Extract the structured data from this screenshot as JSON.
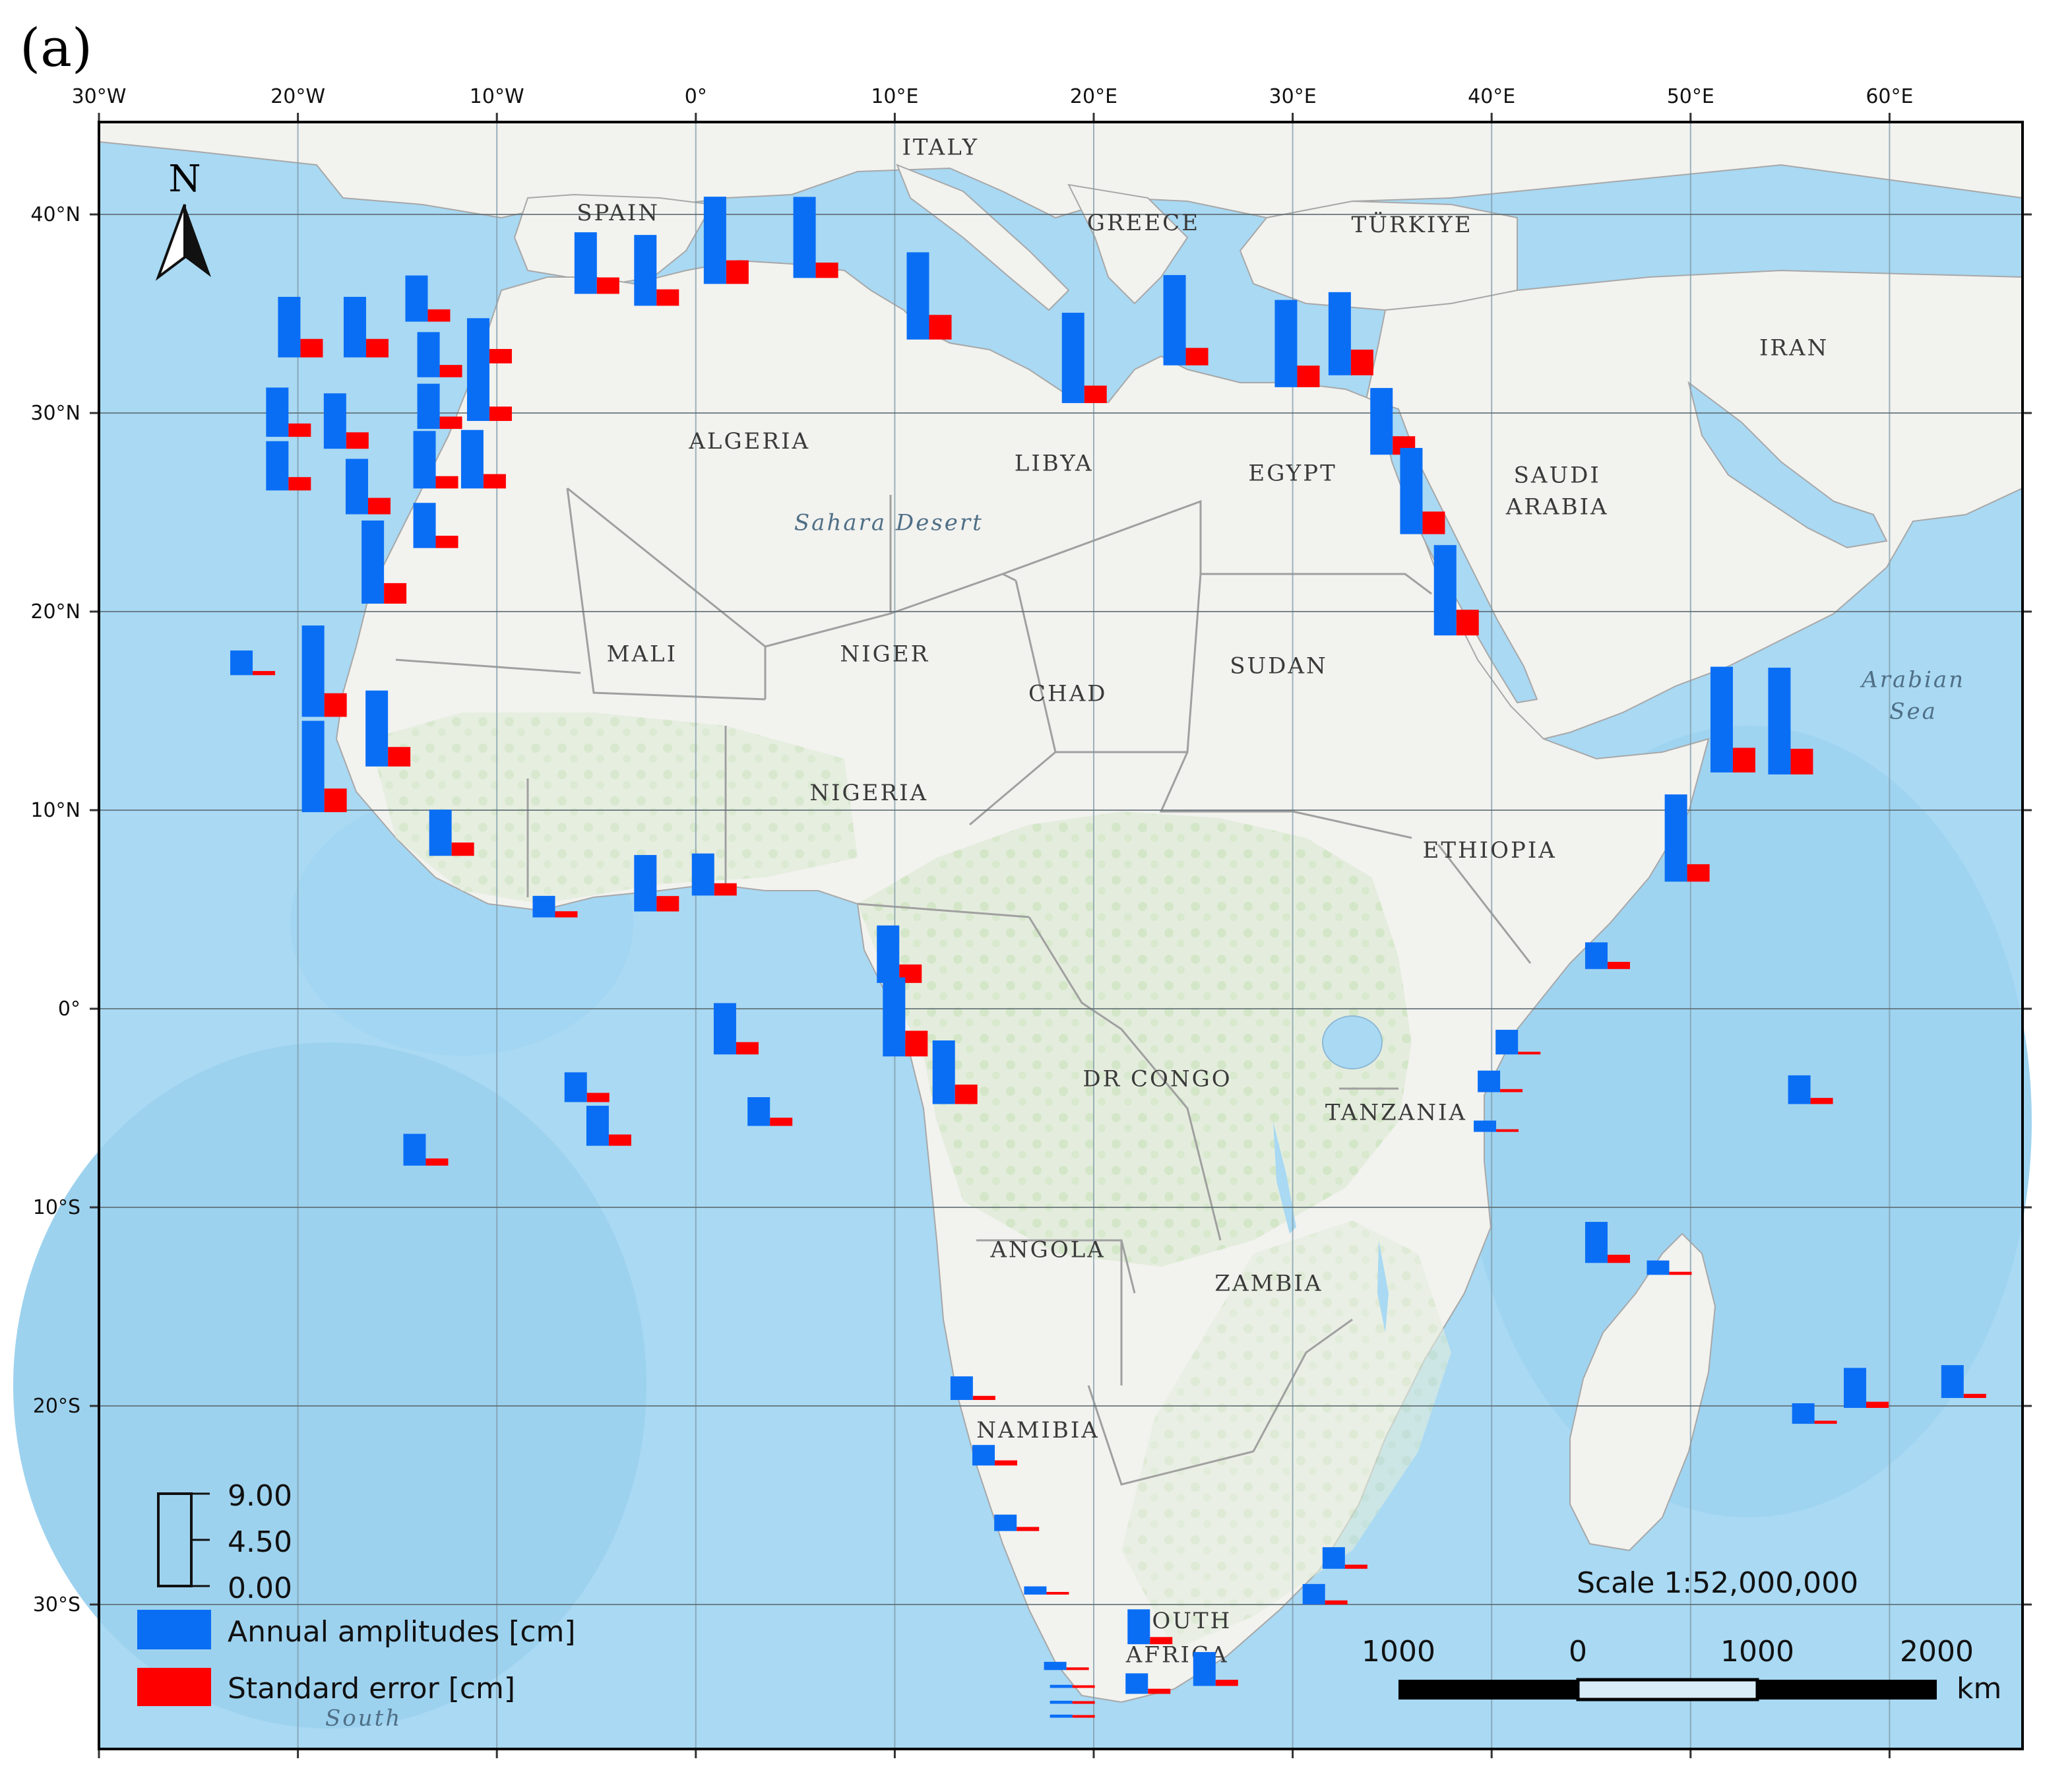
{
  "panel_label": "(a)",
  "grid": {
    "lon_labels": [
      "30°W",
      "20°W",
      "10°W",
      "0°",
      "10°E",
      "20°E",
      "30°E",
      "40°E",
      "50°E",
      "60°E"
    ],
    "lon_values": [
      -30,
      -20,
      -10,
      0,
      10,
      20,
      30,
      40,
      50,
      60
    ],
    "lat_labels": [
      "40°N",
      "30°N",
      "20°N",
      "10°N",
      "0°",
      "10°S",
      "20°S",
      "30°S"
    ],
    "lat_values": [
      40,
      30,
      20,
      10,
      0,
      -10,
      -20,
      -30
    ]
  },
  "north_arrow": {
    "label": "N"
  },
  "countries": [
    {
      "name": "ITALY",
      "lon": 12.3,
      "lat": 43
    },
    {
      "name": "SPAIN",
      "lon": -3.9,
      "lat": 39.7
    },
    {
      "name": "GREECE",
      "lon": 22.5,
      "lat": 39.2
    },
    {
      "name": "TÜRKIYE",
      "lon": 36,
      "lat": 39.1
    },
    {
      "name": "IRAN",
      "lon": 55.2,
      "lat": 32.9
    },
    {
      "name": "ALGERIA",
      "lon": 2.7,
      "lat": 28.2
    },
    {
      "name": "LIBYA",
      "lon": 18,
      "lat": 27.1
    },
    {
      "name": "EGYPT",
      "lon": 30,
      "lat": 26.6
    },
    {
      "name": "SAUDI",
      "lon": 43.3,
      "lat": 26.5
    },
    {
      "name": "ARABIA",
      "lon": 43.3,
      "lat": 24.9
    },
    {
      "name": "MALI",
      "lon": -2.7,
      "lat": 17.5
    },
    {
      "name": "NIGER",
      "lon": 9.5,
      "lat": 17.5
    },
    {
      "name": "CHAD",
      "lon": 18.7,
      "lat": 15.5
    },
    {
      "name": "SUDAN",
      "lon": 29.3,
      "lat": 16.9
    },
    {
      "name": "NIGERIA",
      "lon": 8.7,
      "lat": 10.5
    },
    {
      "name": "ETHIOPIA",
      "lon": 39.9,
      "lat": 7.6
    },
    {
      "name": "DR CONGO",
      "lon": 23.2,
      "lat": -3.9
    },
    {
      "name": "TANZANIA",
      "lon": 35.2,
      "lat": -5.6
    },
    {
      "name": "ANGOLA",
      "lon": 17.7,
      "lat": -12.5
    },
    {
      "name": "ZAMBIA",
      "lon": 28.8,
      "lat": -14.2
    },
    {
      "name": "NAMIBIA",
      "lon": 17.2,
      "lat": -21.6
    },
    {
      "name": "SOUTH",
      "lon": 24.5,
      "lat": -31.2
    },
    {
      "name": "AFRICA",
      "lon": 24.2,
      "lat": -32.9
    }
  ],
  "seas": [
    {
      "name": "Sahara Desert",
      "lon": 9.7,
      "lat": 24.1
    },
    {
      "name": "Arabian",
      "lon": 61.2,
      "lat": 16.2
    },
    {
      "name": "Sea",
      "lon": 61.2,
      "lat": 14.6
    },
    {
      "name": "South",
      "lon": -16.7,
      "lat": -36.1
    }
  ],
  "legend": {
    "scale_ticks": [
      "9.00",
      "4.50",
      "0.00"
    ],
    "scale_values": [
      9,
      4.5,
      0
    ],
    "series": [
      {
        "name": "Annual amplitudes [cm]",
        "color": "#0a6ef5"
      },
      {
        "name": "Standard error [cm]",
        "color": "#ff0000"
      }
    ]
  },
  "scale_bar": {
    "title": "Scale 1:52,000,000",
    "labels": [
      "1000",
      "0",
      "1000",
      "2000"
    ],
    "unit": "km"
  },
  "stations": [
    {
      "lon": -21,
      "lat": 32.8,
      "amp": 5.9,
      "err": 1.8
    },
    {
      "lon": -17.7,
      "lat": 32.8,
      "amp": 5.9,
      "err": 1.8
    },
    {
      "lon": -14.6,
      "lat": 34.6,
      "amp": 4.5,
      "err": 1.2
    },
    {
      "lon": -11.5,
      "lat": 32.5,
      "amp": 4.4,
      "err": 1.4
    },
    {
      "lon": -14,
      "lat": 31.8,
      "amp": 4.4,
      "err": 1.2
    },
    {
      "lon": -11.5,
      "lat": 29.6,
      "amp": 5.7,
      "err": 1.4
    },
    {
      "lon": -14,
      "lat": 29.2,
      "amp": 4.4,
      "err": 1.2
    },
    {
      "lon": -21.6,
      "lat": 28.8,
      "amp": 4.8,
      "err": 1.3
    },
    {
      "lon": -18.7,
      "lat": 28.2,
      "amp": 5.4,
      "err": 1.6
    },
    {
      "lon": -21.6,
      "lat": 26.1,
      "amp": 4.8,
      "err": 1.3
    },
    {
      "lon": -14.2,
      "lat": 26.2,
      "amp": 5.6,
      "err": 1.2
    },
    {
      "lon": -11.8,
      "lat": 26.2,
      "amp": 5.7,
      "err": 1.4
    },
    {
      "lon": -17.6,
      "lat": 24.9,
      "amp": 5.4,
      "err": 1.6
    },
    {
      "lon": -14.2,
      "lat": 23.2,
      "amp": 4.4,
      "err": 1.2
    },
    {
      "lon": -16.8,
      "lat": 20.4,
      "amp": 8.1,
      "err": 2.0
    },
    {
      "lon": -6.1,
      "lat": 36.0,
      "amp": 6.0,
      "err": 1.6
    },
    {
      "lon": -3.1,
      "lat": 35.4,
      "amp": 6.9,
      "err": 1.6
    },
    {
      "lon": 0.4,
      "lat": 36.5,
      "amp": 8.5,
      "err": 2.3
    },
    {
      "lon": 4.9,
      "lat": 36.8,
      "amp": 7.9,
      "err": 1.5
    },
    {
      "lon": 10.6,
      "lat": 33.7,
      "amp": 8.5,
      "err": 2.4
    },
    {
      "lon": 18.4,
      "lat": 30.5,
      "amp": 8.8,
      "err": 1.7
    },
    {
      "lon": 23.5,
      "lat": 32.4,
      "amp": 8.8,
      "err": 1.7
    },
    {
      "lon": 29.1,
      "lat": 31.3,
      "amp": 8.5,
      "err": 2.1
    },
    {
      "lon": 31.8,
      "lat": 31.9,
      "amp": 8.1,
      "err": 2.5
    },
    {
      "lon": 33.9,
      "lat": 27.9,
      "amp": 6.5,
      "err": 1.8
    },
    {
      "lon": 35.4,
      "lat": 23.9,
      "amp": 8.4,
      "err": 2.2
    },
    {
      "lon": 37.1,
      "lat": 18.8,
      "amp": 8.8,
      "err": 2.5
    },
    {
      "lon": -23.4,
      "lat": 16.8,
      "amp": 2.4,
      "err": 0.4
    },
    {
      "lon": -19.8,
      "lat": 14.7,
      "amp": 8.9,
      "err": 2.3
    },
    {
      "lon": -16.6,
      "lat": 12.2,
      "amp": 7.4,
      "err": 1.9
    },
    {
      "lon": -19.8,
      "lat": 9.9,
      "amp": 8.9,
      "err": 2.3
    },
    {
      "lon": -13.4,
      "lat": 7.7,
      "amp": 4.5,
      "err": 1.3
    },
    {
      "lon": -8.2,
      "lat": 4.6,
      "amp": 2.1,
      "err": 0.6
    },
    {
      "lon": -3.1,
      "lat": 4.9,
      "amp": 5.5,
      "err": 1.5
    },
    {
      "lon": -0.2,
      "lat": 5.7,
      "amp": 4.1,
      "err": 1.2
    },
    {
      "lon": 51,
      "lat": 11.9,
      "amp": 10.3,
      "err": 2.4
    },
    {
      "lon": 53.9,
      "lat": 11.8,
      "amp": 10.4,
      "err": 2.5
    },
    {
      "lon": 48.7,
      "lat": 6.4,
      "amp": 8.5,
      "err": 1.7
    },
    {
      "lon": 9.1,
      "lat": 1.3,
      "amp": 5.6,
      "err": 1.8
    },
    {
      "lon": 9.4,
      "lat": -2.4,
      "amp": 7.7,
      "err": 2.5
    },
    {
      "lon": 0.9,
      "lat": -2.3,
      "amp": 5.0,
      "err": 1.2
    },
    {
      "lon": 11.9,
      "lat": -4.8,
      "amp": 6.2,
      "err": 1.9
    },
    {
      "lon": -6.6,
      "lat": -4.7,
      "amp": 2.9,
      "err": 0.9
    },
    {
      "lon": -5.5,
      "lat": -6.9,
      "amp": 3.9,
      "err": 1.1
    },
    {
      "lon": 2.6,
      "lat": -5.9,
      "amp": 2.8,
      "err": 0.8
    },
    {
      "lon": -14.7,
      "lat": -7.9,
      "amp": 3.1,
      "err": 0.7
    },
    {
      "lon": 44.7,
      "lat": 2.0,
      "amp": 2.6,
      "err": 0.7
    },
    {
      "lon": 40.2,
      "lat": -2.3,
      "amp": 2.4,
      "err": 0.2
    },
    {
      "lon": 39.3,
      "lat": -4.2,
      "amp": 2.1,
      "err": 0.3
    },
    {
      "lon": 39.1,
      "lat": -6.2,
      "amp": 1.1,
      "err": 0.2
    },
    {
      "lon": 54.9,
      "lat": -4.8,
      "amp": 2.8,
      "err": 0.6
    },
    {
      "lon": 44.7,
      "lat": -12.8,
      "amp": 4.0,
      "err": 0.8
    },
    {
      "lon": 47.8,
      "lat": -13.4,
      "amp": 1.4,
      "err": 0.3
    },
    {
      "lon": 55.1,
      "lat": -20.9,
      "amp": 2.0,
      "err": 0.3
    },
    {
      "lon": 57.7,
      "lat": -20.1,
      "amp": 3.9,
      "err": 0.6
    },
    {
      "lon": 62.6,
      "lat": -19.6,
      "amp": 3.2,
      "err": 0.4
    },
    {
      "lon": 12.8,
      "lat": -19.7,
      "amp": 2.3,
      "err": 0.4
    },
    {
      "lon": 13.9,
      "lat": -23.0,
      "amp": 2.0,
      "err": 0.5
    },
    {
      "lon": 15,
      "lat": -26.3,
      "amp": 1.6,
      "err": 0.4
    },
    {
      "lon": 16.5,
      "lat": -29.5,
      "amp": 0.8,
      "err": 0.1
    },
    {
      "lon": 17.5,
      "lat": -33.3,
      "amp": 0.8,
      "err": 0.1
    },
    {
      "lon": 17.8,
      "lat": -34.2,
      "amp": 0.3,
      "err": 0.1
    },
    {
      "lon": 17.8,
      "lat": -35.0,
      "amp": 0.3,
      "err": 0.1
    },
    {
      "lon": 17.8,
      "lat": -35.7,
      "amp": 0.3,
      "err": 0.1
    },
    {
      "lon": 21.7,
      "lat": -32.0,
      "amp": 3.4,
      "err": 0.7
    },
    {
      "lon": 21.6,
      "lat": -34.5,
      "amp": 2.0,
      "err": 0.5
    },
    {
      "lon": 25,
      "lat": -34.1,
      "amp": 3.3,
      "err": 0.6
    },
    {
      "lon": 31.5,
      "lat": -28.2,
      "amp": 2.1,
      "err": 0.4
    },
    {
      "lon": 30.5,
      "lat": -30.0,
      "amp": 2.0,
      "err": 0.4
    }
  ]
}
